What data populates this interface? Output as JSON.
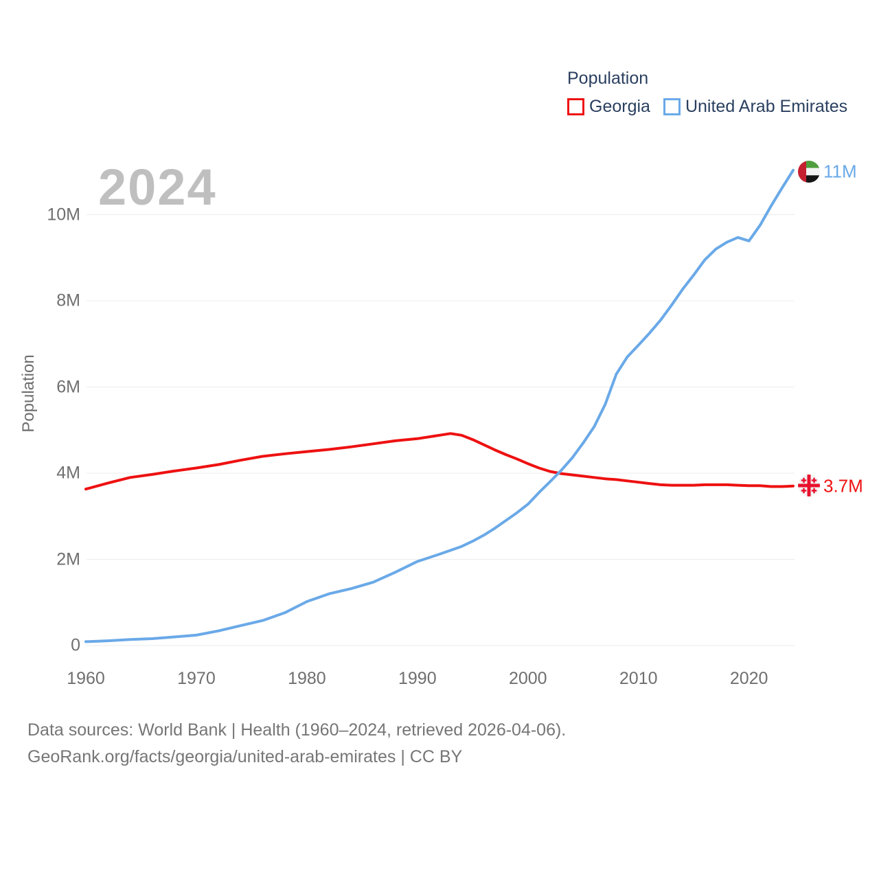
{
  "watermark": "2024",
  "legend": {
    "title": "Population",
    "items": [
      {
        "label": "Georgia",
        "color": "#ee1111"
      },
      {
        "label": "United Arab Emirates",
        "color": "#6aa9e8"
      }
    ]
  },
  "footer": {
    "line1": "Data sources: World Bank | Health (1960–2024, retrieved 2026-04-06).",
    "line2": "GeoRank.org/facts/georgia/united-arab-emirates | CC BY"
  },
  "chart_data": {
    "type": "line",
    "title": "Population",
    "xlabel": "",
    "ylabel": "Population",
    "values_unit": "persons (millions)",
    "xlim": [
      1960,
      2024
    ],
    "ylim": [
      0,
      11.2
    ],
    "grid": "horizontal",
    "legend_position": "top-right",
    "x_ticks": [
      {
        "value": 1960,
        "label": "1960"
      },
      {
        "value": 1970,
        "label": "1970"
      },
      {
        "value": 1980,
        "label": "1980"
      },
      {
        "value": 1990,
        "label": "1990"
      },
      {
        "value": 2000,
        "label": "2000"
      },
      {
        "value": 2010,
        "label": "2010"
      },
      {
        "value": 2020,
        "label": "2020"
      }
    ],
    "y_ticks": [
      {
        "value": 0,
        "label": "0"
      },
      {
        "value": 2,
        "label": "2M"
      },
      {
        "value": 4,
        "label": "4M"
      },
      {
        "value": 6,
        "label": "6M"
      },
      {
        "value": 8,
        "label": "8M"
      },
      {
        "value": 10,
        "label": "10M"
      }
    ],
    "series": [
      {
        "name": "Georgia",
        "color": "#ee1111",
        "end_label": "3.7M",
        "flag_icon": "georgia-flag-icon",
        "points": [
          [
            1960,
            3.63
          ],
          [
            1962,
            3.77
          ],
          [
            1964,
            3.9
          ],
          [
            1966,
            3.97
          ],
          [
            1968,
            4.05
          ],
          [
            1970,
            4.12
          ],
          [
            1972,
            4.2
          ],
          [
            1974,
            4.3
          ],
          [
            1976,
            4.39
          ],
          [
            1978,
            4.45
          ],
          [
            1980,
            4.5
          ],
          [
            1982,
            4.55
          ],
          [
            1984,
            4.61
          ],
          [
            1986,
            4.68
          ],
          [
            1988,
            4.75
          ],
          [
            1990,
            4.8
          ],
          [
            1992,
            4.88
          ],
          [
            1993,
            4.92
          ],
          [
            1994,
            4.88
          ],
          [
            1995,
            4.78
          ],
          [
            1996,
            4.66
          ],
          [
            1997,
            4.54
          ],
          [
            1998,
            4.43
          ],
          [
            1999,
            4.33
          ],
          [
            2000,
            4.22
          ],
          [
            2001,
            4.12
          ],
          [
            2002,
            4.04
          ],
          [
            2003,
            3.99
          ],
          [
            2004,
            3.96
          ],
          [
            2005,
            3.93
          ],
          [
            2006,
            3.9
          ],
          [
            2007,
            3.87
          ],
          [
            2008,
            3.85
          ],
          [
            2009,
            3.82
          ],
          [
            2010,
            3.79
          ],
          [
            2011,
            3.76
          ],
          [
            2012,
            3.73
          ],
          [
            2013,
            3.72
          ],
          [
            2014,
            3.72
          ],
          [
            2015,
            3.72
          ],
          [
            2016,
            3.73
          ],
          [
            2017,
            3.73
          ],
          [
            2018,
            3.73
          ],
          [
            2019,
            3.72
          ],
          [
            2020,
            3.71
          ],
          [
            2021,
            3.71
          ],
          [
            2022,
            3.69
          ],
          [
            2023,
            3.69
          ],
          [
            2024,
            3.7
          ]
        ]
      },
      {
        "name": "United Arab Emirates",
        "color": "#6aa9e8",
        "end_label": "11M",
        "flag_icon": "uae-flag-icon",
        "points": [
          [
            1960,
            0.09
          ],
          [
            1962,
            0.11
          ],
          [
            1964,
            0.14
          ],
          [
            1966,
            0.16
          ],
          [
            1968,
            0.2
          ],
          [
            1970,
            0.24
          ],
          [
            1972,
            0.34
          ],
          [
            1974,
            0.46
          ],
          [
            1976,
            0.58
          ],
          [
            1978,
            0.76
          ],
          [
            1980,
            1.02
          ],
          [
            1982,
            1.2
          ],
          [
            1984,
            1.32
          ],
          [
            1986,
            1.47
          ],
          [
            1988,
            1.7
          ],
          [
            1990,
            1.95
          ],
          [
            1992,
            2.12
          ],
          [
            1994,
            2.3
          ],
          [
            1995,
            2.42
          ],
          [
            1996,
            2.56
          ],
          [
            1997,
            2.72
          ],
          [
            1998,
            2.9
          ],
          [
            1999,
            3.08
          ],
          [
            2000,
            3.28
          ],
          [
            2001,
            3.55
          ],
          [
            2002,
            3.8
          ],
          [
            2003,
            4.06
          ],
          [
            2004,
            4.35
          ],
          [
            2005,
            4.7
          ],
          [
            2006,
            5.08
          ],
          [
            2007,
            5.6
          ],
          [
            2008,
            6.3
          ],
          [
            2009,
            6.7
          ],
          [
            2010,
            6.97
          ],
          [
            2011,
            7.25
          ],
          [
            2012,
            7.55
          ],
          [
            2013,
            7.9
          ],
          [
            2014,
            8.27
          ],
          [
            2015,
            8.6
          ],
          [
            2016,
            8.95
          ],
          [
            2017,
            9.2
          ],
          [
            2018,
            9.36
          ],
          [
            2019,
            9.47
          ],
          [
            2020,
            9.39
          ],
          [
            2021,
            9.75
          ],
          [
            2022,
            10.2
          ],
          [
            2023,
            10.62
          ],
          [
            2024,
            11.03
          ]
        ]
      }
    ]
  }
}
